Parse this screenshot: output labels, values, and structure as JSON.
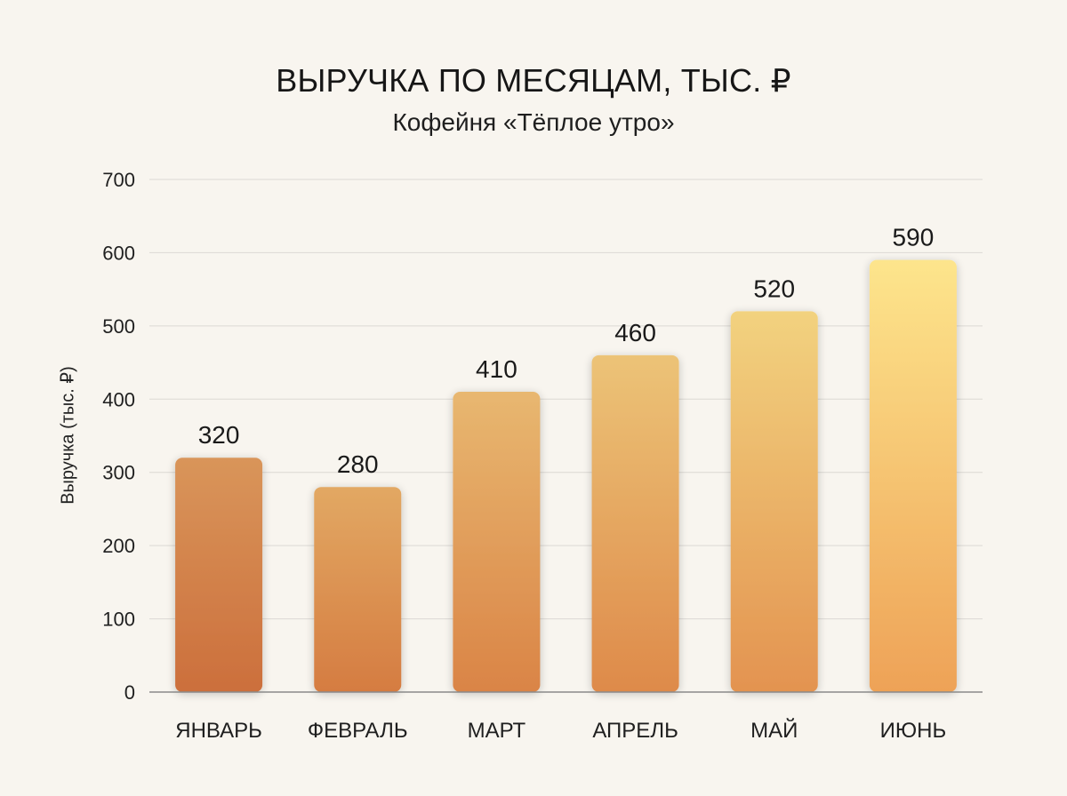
{
  "chart_data": {
    "type": "bar",
    "title": "ВЫРУЧКА ПО МЕСЯЦАМ, ТЫС. ₽",
    "subtitle": "Кофейня «Тёплое утро»",
    "xlabel": "",
    "ylabel": "Выручка (тыс. ₽)",
    "categories": [
      "ЯНВАРЬ",
      "ФЕВРАЛЬ",
      "МАРТ",
      "АПРЕЛЬ",
      "МАЙ",
      "ИЮНЬ"
    ],
    "values": [
      320,
      280,
      410,
      460,
      520,
      590
    ],
    "ylim": [
      0,
      700
    ],
    "yticks": [
      0,
      100,
      200,
      300,
      400,
      500,
      600,
      700
    ],
    "grid": true,
    "data_labels": true
  },
  "colors": {
    "background": "#f8f5ef",
    "gridline": "#dcd9d4",
    "axis": "#8a8a8a",
    "bar_gradient_top": [
      "#d9955a",
      "#e2a863",
      "#e8b770",
      "#ecc377",
      "#f2d27f",
      "#fde58c"
    ],
    "bar_gradient_bottom": [
      "#cc6f3c",
      "#d57c41",
      "#da8446",
      "#de8a4a",
      "#e39350",
      "#eea257"
    ]
  }
}
